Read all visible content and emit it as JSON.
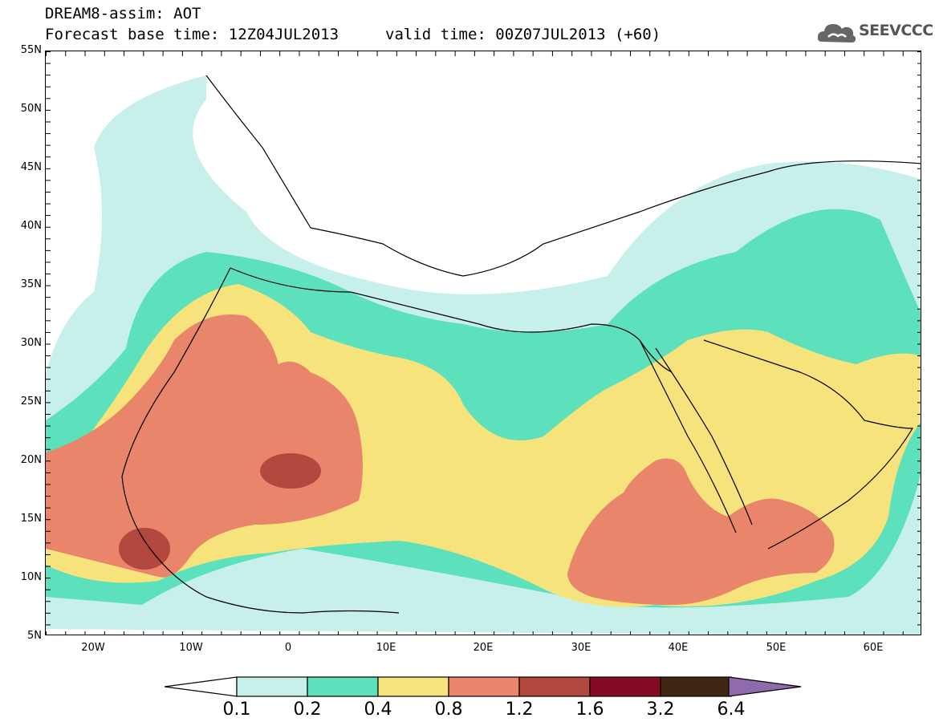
{
  "header": {
    "title_line1": "DREAM8-assim: AOT",
    "title_line2": "Forecast base time: 12Z04JUL2013",
    "valid_time": "valid time: 00Z07JUL2013 (+60)",
    "logo_text": "SEEVCCC"
  },
  "axes": {
    "lat_labels": [
      "55N",
      "50N",
      "45N",
      "40N",
      "35N",
      "30N",
      "25N",
      "20N",
      "15N",
      "10N",
      "5N"
    ],
    "lon_labels": [
      "20W",
      "10W",
      "0",
      "10E",
      "20E",
      "30E",
      "40E",
      "50E",
      "60E"
    ]
  },
  "colorbar": {
    "levels": [
      "0.1",
      "0.2",
      "0.4",
      "0.8",
      "1.2",
      "1.6",
      "3.2",
      "6.4"
    ],
    "colors": [
      "#c8f0ea",
      "#5de0bc",
      "#f6e37b",
      "#e9856a",
      "#b2483e",
      "#840a25",
      "#402714",
      "#8f6bac"
    ],
    "under_color": "#ffffff"
  },
  "colors": {
    "c01": "#c8f0ea",
    "c02": "#5de0bc",
    "c04": "#f6e37b",
    "c08": "#e9856a",
    "c12": "#b2483e"
  }
}
